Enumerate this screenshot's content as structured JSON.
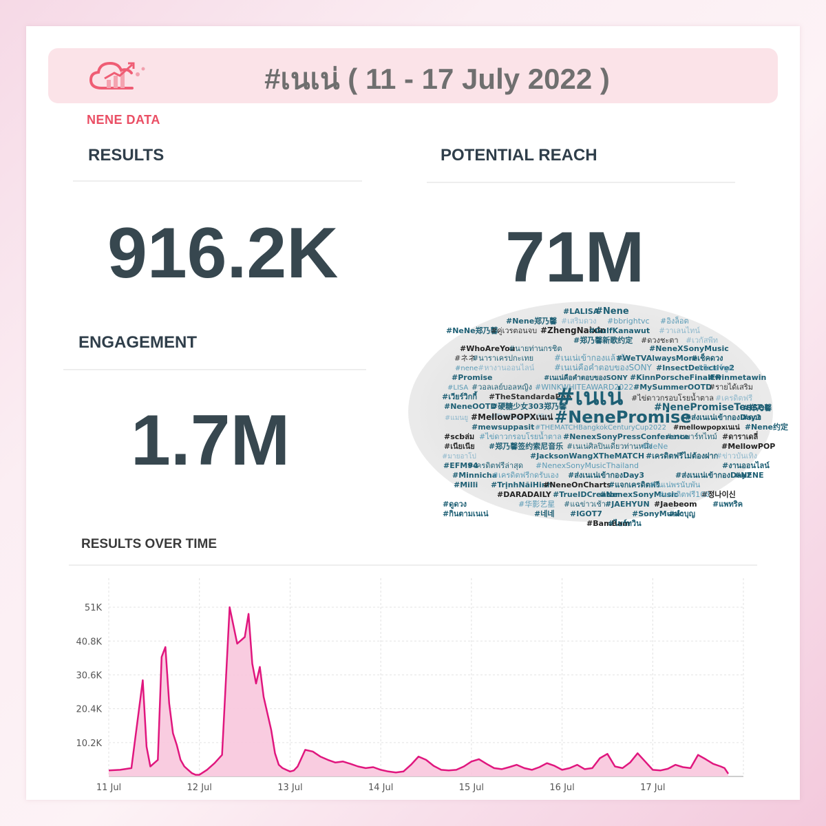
{
  "brand": {
    "name": "NENE DATA"
  },
  "header": {
    "title": "#เนเน่ ( 11 - 17 July 2022 )"
  },
  "metrics": {
    "results": {
      "label": "RESULTS",
      "value": "916.2K"
    },
    "reach": {
      "label": "POTENTIAL REACH",
      "value": "71M"
    },
    "engagement": {
      "label": "ENGAGEMENT",
      "value": "1.7M"
    }
  },
  "wordcloud": {
    "words": [
      {
        "text": "#LALISA",
        "color": "#1e5f74"
      },
      {
        "text": "#Nene",
        "color": "#1e5f74"
      },
      {
        "text": "#Nene郑乃馨",
        "color": "#1e5f74"
      },
      {
        "text": "#เสริมดวง",
        "color": "#8fb8cc"
      },
      {
        "text": "#bbrightvc",
        "color": "#5a9ab5"
      },
      {
        "text": "#อิงล็อต",
        "color": "#5a9ab5"
      },
      {
        "text": "#NeNe郑乃馨",
        "color": "#1e5f74"
      },
      {
        "text": "#คู่เวรตอนจบ",
        "color": "#333333"
      },
      {
        "text": "#ZhengNaixin",
        "color": "#222222"
      },
      {
        "text": "#GulfKanawut",
        "color": "#1e5f74"
      },
      {
        "text": "#วาเลนไทน์",
        "color": "#8fb8cc"
      },
      {
        "text": "#郑乃馨新歌约定",
        "color": "#1e5f74"
      },
      {
        "text": "#ดวงชะตา",
        "color": "#333333"
      },
      {
        "text": "#เวกัสพีท",
        "color": "#8fb8cc"
      },
      {
        "text": "#WhoAreYou",
        "color": "#222222"
      },
      {
        "text": "#นายท่านกรชิต",
        "color": "#1e5f74"
      },
      {
        "text": "#NeneXSonyMusic",
        "color": "#1e5f74"
      },
      {
        "text": "#ネネ",
        "color": "#333333"
      },
      {
        "text": "#นาราเครปกะเทย",
        "color": "#1e5f74"
      },
      {
        "text": "#เนเน่เข้ากองแล้วจ้า",
        "color": "#5a9ab5"
      },
      {
        "text": "#WeTVAlwaysMore",
        "color": "#1e5f74"
      },
      {
        "text": "#เช็คดวง",
        "color": "#1e5f74"
      },
      {
        "text": "#nene",
        "color": "#5a9ab5"
      },
      {
        "text": "#หางานออนไลน์",
        "color": "#8fb8cc"
      },
      {
        "text": "#เนเน่คือคำตอบของSONY",
        "color": "#5a9ab5"
      },
      {
        "text": "#InsectDetective2",
        "color": "#1e5f74"
      },
      {
        "text": "#ลิเวอร์พูล",
        "color": "#5a9ab5"
      },
      {
        "text": "#Promise",
        "color": "#1e5f74"
      },
      {
        "text": "#เนเน่คือคำตอบของSONY",
        "color": "#1e5f74"
      },
      {
        "text": "#KinnPorscheFinalEP",
        "color": "#1e5f74"
      },
      {
        "text": "#winmetawin",
        "color": "#1e5f74"
      },
      {
        "text": "#LISA",
        "color": "#5a9ab5"
      },
      {
        "text": "#วอลเลย์บอลหญิง",
        "color": "#1e5f74"
      },
      {
        "text": "#WINKWHITEAWARD2022",
        "color": "#5a9ab5"
      },
      {
        "text": "#MySummerOOTD",
        "color": "#1e5f74"
      },
      {
        "text": "#รายได้เสริม",
        "color": "#333333"
      },
      {
        "text": "#เวียร์วิกกี้",
        "color": "#1e5f74"
      },
      {
        "text": "#TheStandardaPop",
        "color": "#333333"
      },
      {
        "text": "#เนเน่",
        "color": "#1e5f74"
      },
      {
        "text": "#ไข่ดาวกรอบโรยน้ำตาล",
        "color": "#333333"
      },
      {
        "text": "#เครดิตฟรี",
        "color": "#8fb8cc"
      },
      {
        "text": "#NeneOOTD",
        "color": "#1e5f74"
      },
      {
        "text": "#硬糖少女303郑乃馨",
        "color": "#1e5f74"
      },
      {
        "text": "#NenePromiseTeaser",
        "color": "#1e5f74"
      },
      {
        "text": "#郑乃馨",
        "color": "#1e5f74"
      },
      {
        "text": "#TheStandardPop",
        "color": "#8fb8cc"
      },
      {
        "text": "#แมนยู",
        "color": "#8fb8cc"
      },
      {
        "text": "#MellowPOPXเนเน่",
        "color": "#222222"
      },
      {
        "text": "#NenePromise",
        "color": "#1e5f74"
      },
      {
        "text": "#ส่งเนเน่เข้ากองDay1",
        "color": "#1e5f74"
      },
      {
        "text": "#ดวง",
        "color": "#1e5f74"
      },
      {
        "text": "#mewsuppasit",
        "color": "#1e5f74"
      },
      {
        "text": "#THEMATCHBangkokCenturyCup2022",
        "color": "#5a9ab5"
      },
      {
        "text": "#mellowpopxเนเน่",
        "color": "#222222"
      },
      {
        "text": "#Nene约定",
        "color": "#1e5f74"
      },
      {
        "text": "#scbล่ม",
        "color": "#222222"
      },
      {
        "text": "#ไข่ดาวกรอบโรยน้ำตาล",
        "color": "#5a9ab5"
      },
      {
        "text": "#NenexSonyPressConference",
        "color": "#1e5f74"
      },
      {
        "text": "#งานพาร์ทไทม์",
        "color": "#1e5f74"
      },
      {
        "text": "#ดาราเดลี่",
        "color": "#333333"
      },
      {
        "text": "#เนียเนีย",
        "color": "#333333"
      },
      {
        "text": "#郑乃馨签约索尼音乐",
        "color": "#1e5f74"
      },
      {
        "text": "#เนเน่ศิลปินเดี่ยวท่านหนึ่ง",
        "color": "#1e5f74"
      },
      {
        "text": "#NeNe",
        "color": "#5a9ab5"
      },
      {
        "text": "#MellowPOP",
        "color": "#222222"
      },
      {
        "text": "#มายอาโป",
        "color": "#8fb8cc"
      },
      {
        "text": "#JacksonWangXTheMATCH",
        "color": "#1e5f74"
      },
      {
        "text": "#เครดิตฟรีไม่ต้องฝาก",
        "color": "#1e5f74"
      },
      {
        "text": "#ข่าวบันเทิง",
        "color": "#8fb8cc"
      },
      {
        "text": "#EFM94",
        "color": "#1e5f74"
      },
      {
        "text": "#เครดิตฟรีล่าสุด",
        "color": "#1e5f74"
      },
      {
        "text": "#NenexSonyMusicThailand",
        "color": "#5a9ab5"
      },
      {
        "text": "#งานออนไลน์",
        "color": "#1e5f74"
      },
      {
        "text": "#Minnicha",
        "color": "#1e5f74"
      },
      {
        "text": "#เครดิตฟรีกดรับเอง",
        "color": "#5a9ab5"
      },
      {
        "text": "#ส่งเนเน่เข้ากองDay3",
        "color": "#1e5f74"
      },
      {
        "text": "#ส่งเนเน่เข้ากองDay2",
        "color": "#1e5f74"
      },
      {
        "text": "#NENE",
        "color": "#1e5f74"
      },
      {
        "text": "#Milli",
        "color": "#1e5f74"
      },
      {
        "text": "#TrịnhNãiHinh",
        "color": "#1e5f74"
      },
      {
        "text": "#NeneOnCharts",
        "color": "#222222"
      },
      {
        "text": "#แจกเครดิตฟรี",
        "color": "#1e5f74"
      },
      {
        "text": "#เนเน่พรนับพัน",
        "color": "#5a9ab5"
      },
      {
        "text": "#DARADAILY",
        "color": "#222222"
      },
      {
        "text": "#TrueIDCreator",
        "color": "#1e5f74"
      },
      {
        "text": "#정나이신",
        "color": "#222222"
      },
      {
        "text": "#ดูดวง",
        "color": "#1e5f74"
      },
      {
        "text": "#NenexSonyMusic",
        "color": "#1e5f74"
      },
      {
        "text": "#เครดิตฟรี100",
        "color": "#5a9ab5"
      },
      {
        "text": "#กินตามเนเน่",
        "color": "#1e5f74"
      },
      {
        "text": "#华影艺星",
        "color": "#5a9ab5"
      },
      {
        "text": "#แฉข่าวเช้า",
        "color": "#1e5f74"
      },
      {
        "text": "#JAEHYUN",
        "color": "#1e5f74"
      },
      {
        "text": "#Jaebeom",
        "color": "#222222"
      },
      {
        "text": "#แพทริค",
        "color": "#1e5f74"
      },
      {
        "text": "#네네",
        "color": "#1e5f74"
      },
      {
        "text": "#IGOT7",
        "color": "#1e5f74"
      },
      {
        "text": "#BamBam",
        "color": "#222222"
      },
      {
        "text": "#SonyMusic",
        "color": "#1e5f74"
      },
      {
        "text": "#ทำบุญ",
        "color": "#1e5f74"
      },
      {
        "text": "#ไบร์ทวิน",
        "color": "#1e5f74"
      }
    ]
  },
  "chart_section": {
    "title": "RESULTS OVER TIME"
  },
  "chart_data": {
    "type": "area",
    "color": "#e0167e",
    "fill": "#f8c6dd",
    "y_ticks": [
      "10.2K",
      "20.4K",
      "30.6K",
      "40.8K",
      "51K"
    ],
    "y_tick_values": [
      10200,
      20400,
      30600,
      40800,
      51000
    ],
    "ylim": [
      0,
      56000
    ],
    "x_ticks": [
      "11 Jul",
      "12 Jul",
      "13 Jul",
      "14 Jul",
      "15 Jul",
      "16 Jul",
      "17 Jul"
    ],
    "x_tick_values": [
      0,
      24,
      48,
      72,
      96,
      120,
      144
    ],
    "x_unit": "hours since 11 Jul 00:00",
    "xlim": [
      0,
      168
    ],
    "grid": true,
    "x": [
      0,
      3,
      6,
      9,
      10,
      11,
      12,
      13,
      14,
      15,
      16,
      17,
      18,
      19,
      20,
      21,
      22,
      23,
      24,
      26,
      28,
      30,
      32,
      34,
      36,
      37,
      38,
      39,
      40,
      41,
      42,
      43,
      44,
      45,
      46,
      47,
      48,
      49,
      50,
      51,
      52,
      54,
      56,
      58,
      60,
      62,
      64,
      66,
      68,
      70,
      72,
      74,
      76,
      78,
      80,
      82,
      84,
      86,
      88,
      90,
      92,
      94,
      96,
      98,
      100,
      102,
      104,
      106,
      108,
      110,
      112,
      114,
      116,
      118,
      120,
      122,
      124,
      126,
      128,
      130,
      132,
      134,
      136,
      138,
      140,
      142,
      144,
      146,
      148,
      150,
      152,
      154,
      156,
      158,
      160,
      162,
      163,
      164
    ],
    "y": [
      1800,
      2000,
      2500,
      29000,
      9000,
      3000,
      4000,
      5000,
      36000,
      39000,
      22000,
      13000,
      9500,
      5000,
      3000,
      2000,
      1000,
      500,
      500,
      2000,
      4000,
      6500,
      51000,
      40000,
      42000,
      49000,
      34000,
      28000,
      33000,
      24000,
      19000,
      14000,
      7000,
      3500,
      2500,
      2000,
      1500,
      1800,
      3000,
      5500,
      8000,
      7500,
      6000,
      5000,
      4200,
      4500,
      3800,
      3000,
      2500,
      2800,
      2000,
      1500,
      1200,
      1500,
      3500,
      6000,
      5000,
      3200,
      2000,
      1800,
      2000,
      3000,
      4500,
      5200,
      3800,
      2500,
      2200,
      2800,
      3500,
      2500,
      2000,
      2800,
      4000,
      3200,
      2000,
      2500,
      3500,
      2200,
      2500,
      5500,
      6800,
      3000,
      2500,
      4200,
      7000,
      4500,
      2000,
      1800,
      2300,
      3500,
      2800,
      2500,
      6500,
      5200,
      3800,
      3000,
      2500,
      800
    ]
  }
}
